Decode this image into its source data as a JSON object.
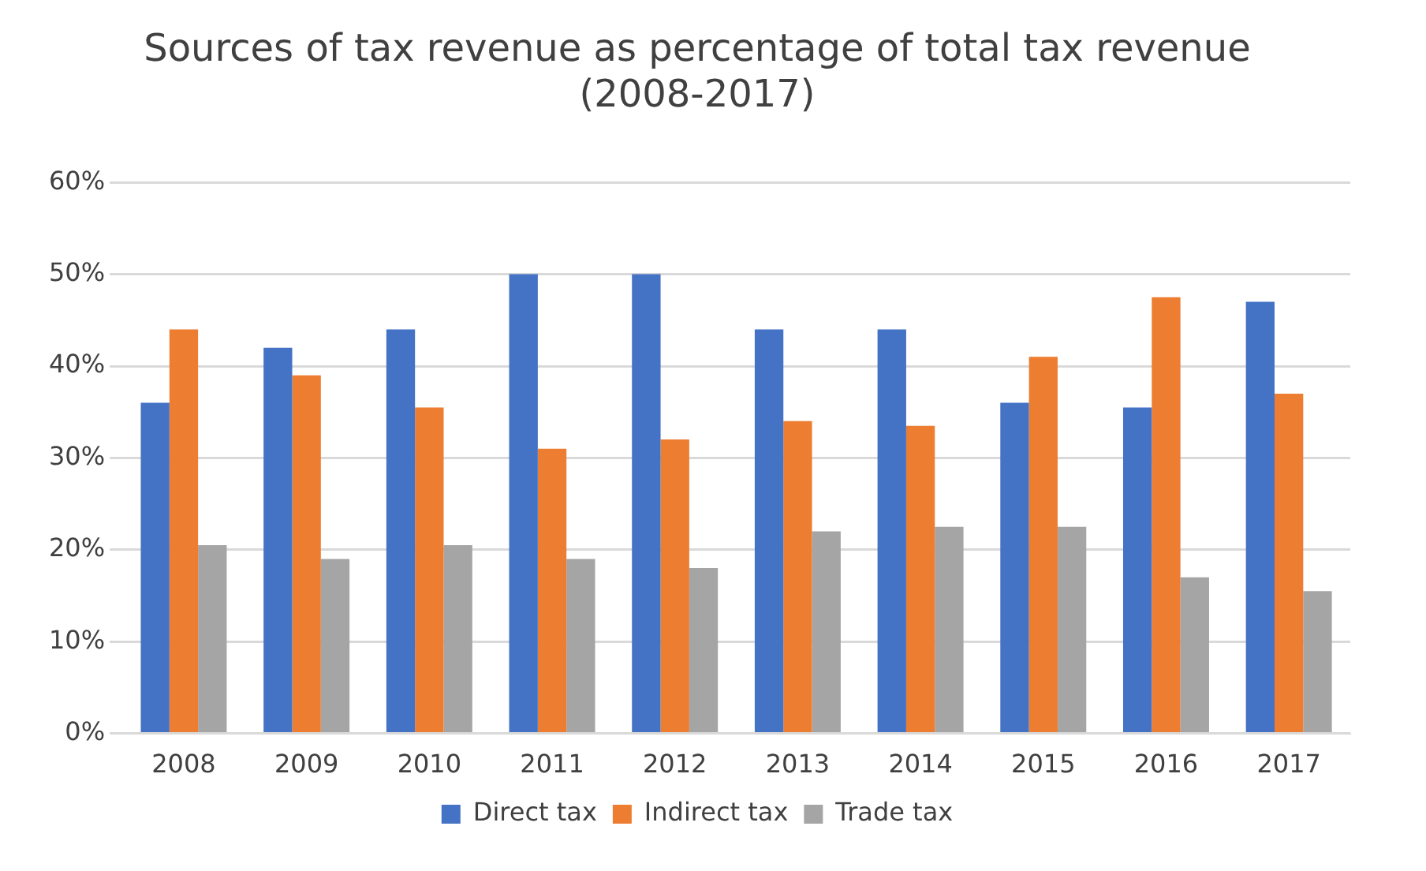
{
  "chart_data": {
    "type": "bar",
    "title": [
      "Sources of tax revenue as percentage of total tax revenue",
      "(2008-2017)"
    ],
    "categories": [
      "2008",
      "2009",
      "2010",
      "2011",
      "2012",
      "2013",
      "2014",
      "2015",
      "2016",
      "2017"
    ],
    "series": [
      {
        "name": "Direct tax",
        "color": "#4472c4",
        "values": [
          36,
          42,
          44,
          50,
          50,
          44,
          44,
          36,
          35.5,
          47
        ]
      },
      {
        "name": "Indirect tax",
        "color": "#ed7d31",
        "values": [
          44,
          39,
          35.5,
          31,
          32,
          34,
          33.5,
          41,
          47.5,
          37
        ]
      },
      {
        "name": "Trade tax",
        "color": "#a5a5a5",
        "values": [
          20.5,
          19,
          20.5,
          19,
          18,
          22,
          22.5,
          22.5,
          17,
          15.5
        ]
      }
    ],
    "ylim": [
      0,
      60
    ],
    "yticks": [
      {
        "value": 0,
        "label": "0%"
      },
      {
        "value": 10,
        "label": "10%"
      },
      {
        "value": 20,
        "label": "20%"
      },
      {
        "value": 30,
        "label": "30%"
      },
      {
        "value": 40,
        "label": "40%"
      },
      {
        "value": 50,
        "label": "50%"
      },
      {
        "value": 60,
        "label": "60%"
      }
    ],
    "grid": "y",
    "legend": "bottom"
  }
}
